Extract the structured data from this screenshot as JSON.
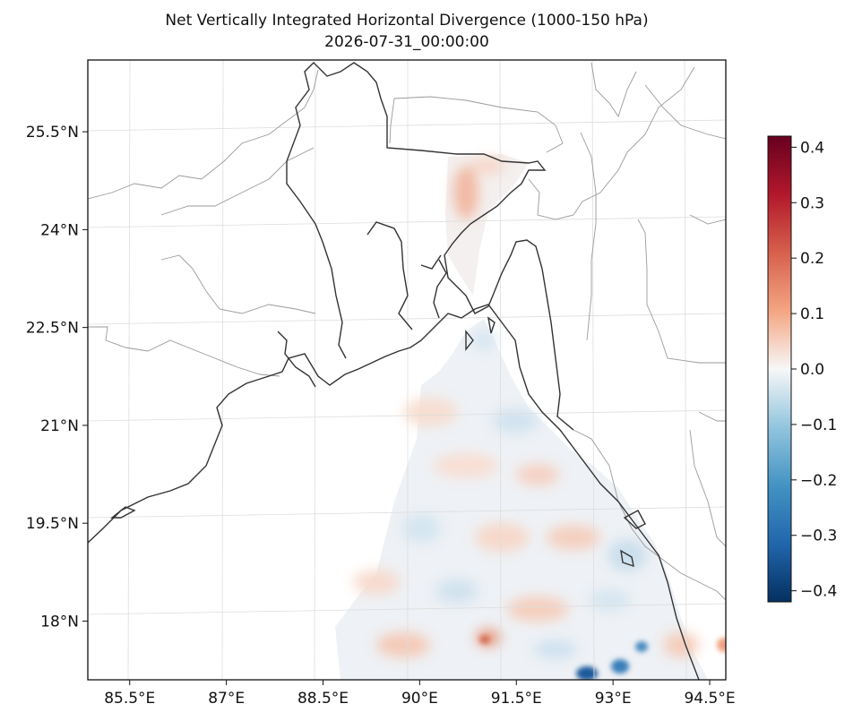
{
  "chart_data": {
    "type": "heatmap",
    "title": "Net Vertically Integrated Horizontal Divergence (1000-150 hPa)",
    "subtitle": "2026-07-31_00:00:00",
    "xlabel": "",
    "ylabel": "",
    "x_ticks": [
      "85.5°E",
      "87°E",
      "88.5°E",
      "90°E",
      "91.5°E",
      "93°E",
      "94.5°E"
    ],
    "x_tick_values": [
      85.5,
      87,
      88.5,
      90,
      91.5,
      93,
      94.5
    ],
    "y_ticks": [
      "25.5°N",
      "24°N",
      "22.5°N",
      "21°N",
      "19.5°N",
      "18°N"
    ],
    "y_tick_values": [
      25.5,
      24,
      22.5,
      21,
      19.5,
      18
    ],
    "xlim": [
      84.85,
      94.75
    ],
    "ylim": [
      17.1,
      26.6
    ],
    "colorbar": {
      "colormap": "RdBu_r",
      "ticks": [
        "0.4",
        "0.3",
        "0.2",
        "0.1",
        "0.0",
        "−0.1",
        "−0.2",
        "−0.3",
        "−0.4"
      ],
      "tick_values": [
        0.4,
        0.3,
        0.2,
        0.1,
        0.0,
        -0.1,
        -0.2,
        -0.3,
        -0.4
      ],
      "range": [
        -0.42,
        0.42
      ]
    },
    "grid": true,
    "field_extent": "ocean (Bay of Bengal) plus a narrow river corridor to the north; land masked (white)",
    "notable_values": [
      {
        "lat": 24.2,
        "lon": 91.0,
        "value": 0.12
      },
      {
        "lat": 17.6,
        "lon": 91.5,
        "value": 0.22
      },
      {
        "lat": 17.2,
        "lon": 93.0,
        "value": -0.38
      },
      {
        "lat": 17.4,
        "lon": 93.8,
        "value": -0.25
      },
      {
        "lat": 19.0,
        "lon": 93.5,
        "value": -0.12
      },
      {
        "lat": 22.2,
        "lon": 91.4,
        "value": -0.08
      }
    ]
  }
}
